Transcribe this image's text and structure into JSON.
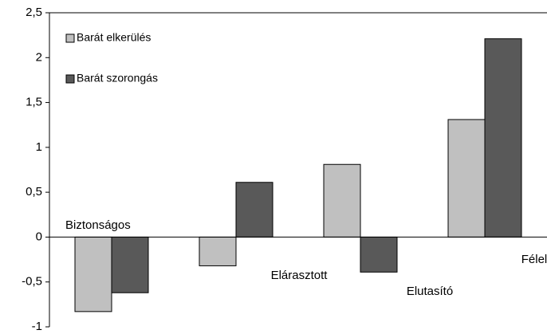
{
  "chart_data": {
    "type": "bar",
    "categories": [
      "Biztonságos",
      "Elárasztott",
      "Elutasító",
      "Félelemteli"
    ],
    "series": [
      {
        "name": "Barát elkerülés",
        "color": "#c0c0c0",
        "values": [
          -0.83,
          -0.32,
          0.81,
          1.31
        ]
      },
      {
        "name": "Barát szorongás",
        "color": "#595959",
        "values": [
          -0.62,
          0.61,
          -0.39,
          2.21
        ]
      }
    ],
    "ylim": [
      -1,
      2.5
    ],
    "yticks": [
      -1,
      {
        "value": -0.5,
        "label": "-0,5"
      },
      0,
      {
        "value": 0.5,
        "label": "0,5"
      },
      1,
      {
        "value": 1.5,
        "label": "1,5"
      },
      2,
      {
        "value": 2.5,
        "label": "2,5"
      }
    ],
    "legend": "top-left"
  }
}
